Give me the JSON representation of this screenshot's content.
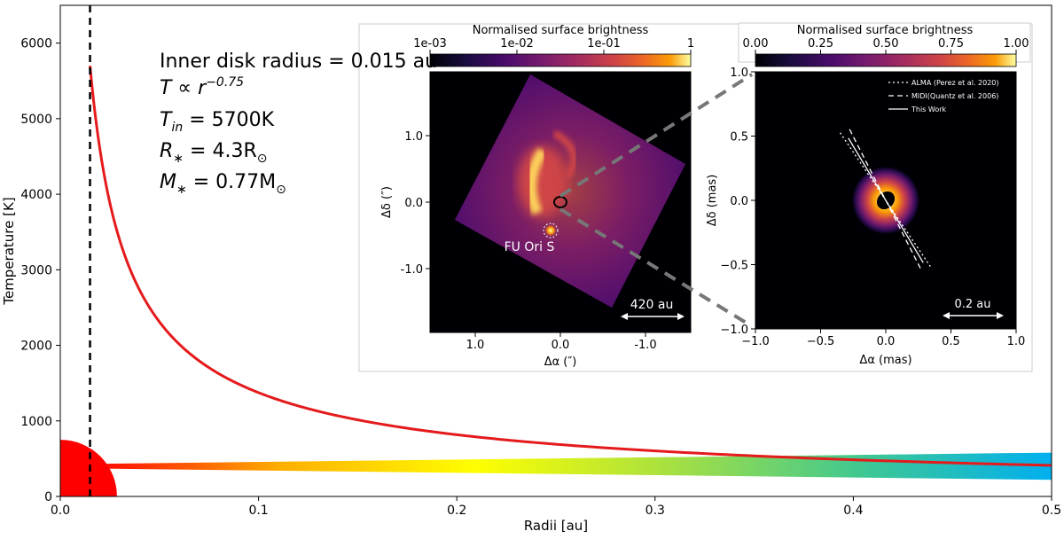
{
  "chart_data": [
    {
      "type": "line",
      "xlabel": "Radii [au]",
      "ylabel": "Temperature [K]",
      "xlim": [
        0,
        0.5
      ],
      "ylim": [
        0,
        6500
      ],
      "x_ticks": [
        0.0,
        0.1,
        0.2,
        0.3,
        0.4,
        0.5
      ],
      "x_tick_labels": [
        "0.0",
        "0.1",
        "0.2",
        "0.3",
        "0.4",
        "0.5"
      ],
      "y_ticks": [
        0,
        1000,
        2000,
        3000,
        4000,
        5000,
        6000
      ],
      "y_tick_labels": [
        "0",
        "1000",
        "2000",
        "3000",
        "4000",
        "5000",
        "6000"
      ],
      "grid": false,
      "series": [
        {
          "color": "#e41a1c",
          "model": "power-law T = T_in (r / r_in)^-0.75",
          "x": [
            0.015,
            0.02,
            0.03,
            0.05,
            0.1,
            0.2,
            0.3,
            0.4,
            0.5
          ],
          "y": [
            5700,
            4590,
            3390,
            2310,
            1370,
            820,
            605,
            485,
            410
          ]
        }
      ],
      "vline": {
        "x": 0.015,
        "style": "dashed",
        "color": "#000000"
      },
      "star": {
        "color": "#ff0000",
        "radius_y": 750
      },
      "disk": {
        "y_center": 400,
        "half_width_start": 30,
        "half_width_end": 180,
        "colors": [
          "#ff0000",
          "#ffb000",
          "#ffff00",
          "#a8e040",
          "#40c890",
          "#00b0f0"
        ]
      },
      "annotations": [
        {
          "id": "radius",
          "text": "Inner disk radius = 0.015 au"
        },
        {
          "id": "temp-law",
          "text": "T ∝ r",
          "sup": "−0.75"
        },
        {
          "id": "t-in",
          "text": "T",
          "sub": "in",
          "rest": " = 5700K"
        },
        {
          "id": "r-star",
          "text": "R",
          "sub": "∗",
          "rest": " = 4.3R",
          "sub2": "⊙"
        },
        {
          "id": "m-star",
          "text": "M",
          "sub": "∗",
          "rest": " = 0.77M",
          "sub2": "⊙"
        }
      ]
    },
    {
      "type": "heatmap",
      "colorbar_label": "Normalised surface brightness",
      "colorbar_ticks": [
        "1e-03",
        "1e-02",
        "1e-01",
        "1"
      ],
      "colorbar_scale": "log",
      "colormap": "inferno",
      "xlabel": "Δα (″)",
      "ylabel": "Δδ (″)",
      "x_ticks": [
        1.0,
        0.0,
        -1.0
      ],
      "x_tick_labels": [
        "1.0",
        "0.0",
        "-1.0"
      ],
      "y_ticks": [
        1.0,
        0.0,
        -1.0
      ],
      "y_tick_labels": [
        "1.0",
        "0.0",
        "-1.0"
      ],
      "labels": [
        {
          "text": "FU Ori S"
        }
      ],
      "scalebar": "420 au"
    },
    {
      "type": "heatmap",
      "colorbar_label": "Normalised surface brightness",
      "colorbar_ticks": [
        "0.00",
        "0.25",
        "0.50",
        "0.75",
        "1.00"
      ],
      "colorbar_range": [
        0,
        1
      ],
      "colormap": "inferno",
      "xlabel": "Δα (mas)",
      "ylabel": "Δδ (mas)",
      "xlim": [
        -1.0,
        1.0
      ],
      "ylim": [
        -1.0,
        1.0
      ],
      "x_ticks": [
        -1.0,
        -0.5,
        0.0,
        0.5,
        1.0
      ],
      "x_tick_labels": [
        "−1.0",
        "−0.5",
        "0.0",
        "0.5",
        "1.0"
      ],
      "y_ticks": [
        1.0,
        0.5,
        0.0,
        -0.5,
        -1.0
      ],
      "y_tick_labels": [
        "1.0",
        "0.5",
        "0.0",
        "−0.5",
        "−1.0"
      ],
      "legend": [
        {
          "label": "ALMA (Perez et al. 2020)",
          "style": "dotted"
        },
        {
          "label": "MIDI(Quantz et al. 2006)",
          "style": "dashed"
        },
        {
          "label": "This Work",
          "style": "solid"
        }
      ],
      "legend_position": "top-right",
      "scalebar": "0.2 au"
    }
  ]
}
